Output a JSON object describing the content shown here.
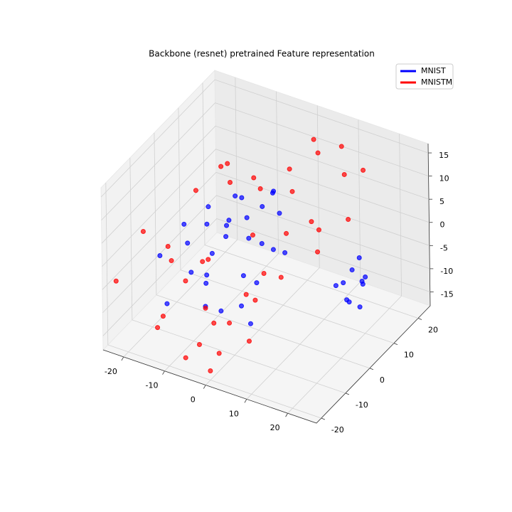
{
  "chart_data": {
    "type": "scatter3d",
    "title": "Backbone (resnet) pretrained Feature representation",
    "legend": "upper right",
    "grid": true,
    "xlim": [
      -25,
      27
    ],
    "ylim": [
      -22,
      25
    ],
    "zlim": [
      -18,
      17
    ],
    "xticks": [
      -20,
      -10,
      0,
      10,
      20
    ],
    "yticks": [
      -20,
      -10,
      0,
      10,
      20
    ],
    "zticks": [
      -15,
      -10,
      -5,
      0,
      5,
      10,
      15
    ],
    "series": [
      {
        "name": "MNIST",
        "color": "#0000ff",
        "x": [
          -18,
          -15,
          -12,
          -10,
          -8,
          -6,
          -5,
          -3,
          -2,
          0,
          1,
          3,
          -14,
          -11,
          -7,
          -4,
          -1,
          2,
          4,
          6,
          -16,
          -9,
          -13,
          -6,
          -2,
          0,
          5,
          -10,
          -8,
          -4,
          22,
          23,
          24,
          25,
          26,
          23,
          24,
          25,
          22,
          26
        ],
        "y": [
          -10,
          -5,
          0,
          5,
          -8,
          -3,
          2,
          7,
          -12,
          -6,
          0,
          4,
          -14,
          -9,
          -1,
          3,
          8,
          -4,
          -10,
          1,
          -2,
          6,
          3,
          -11,
          10,
          -7,
          -2,
          -4,
          9,
          -15,
          -2,
          0,
          -4,
          1,
          -1,
          3,
          -3,
          2,
          -5,
          -2
        ],
        "z": [
          -2,
          3,
          5,
          0,
          -6,
          2,
          8,
          4,
          -8,
          -3,
          1,
          6,
          -9,
          -4,
          3,
          -1,
          7,
          -5,
          -10,
          0,
          -3,
          5,
          -7,
          -2,
          6,
          -9,
          2,
          4,
          -1,
          -6,
          0,
          2,
          -2,
          -1,
          1,
          3,
          -3,
          0,
          1,
          -4
        ]
      },
      {
        "name": "MNISTM",
        "color": "#ff0000",
        "x": [
          -24,
          -22,
          -20,
          -18,
          -15,
          -12,
          -10,
          -8,
          -5,
          -3,
          0,
          2,
          4,
          6,
          8,
          10,
          12,
          14,
          -6,
          -2,
          1,
          3,
          5,
          7,
          -16,
          -13,
          -9,
          -1,
          9,
          11,
          -19,
          -11,
          0,
          6,
          13,
          -7,
          2,
          -4,
          15,
          -14
        ],
        "y": [
          -18,
          -10,
          -2,
          5,
          -14,
          8,
          -6,
          12,
          -16,
          3,
          -12,
          10,
          -8,
          15,
          -4,
          18,
          2,
          20,
          -20,
          -15,
          -18,
          -10,
          -6,
          0,
          12,
          -8,
          4,
          16,
          10,
          6,
          -5,
          -2,
          -20,
          -14,
          14,
          -10,
          20,
          8,
          12,
          -18
        ],
        "z": [
          -5,
          2,
          -8,
          4,
          -12,
          10,
          -3,
          6,
          -14,
          0,
          -10,
          12,
          -6,
          14,
          -2,
          15,
          8,
          10,
          -15,
          -9,
          -13,
          -4,
          -1,
          5,
          6,
          -7,
          9,
          3,
          1,
          -1,
          -3,
          -5,
          -16,
          -11,
          12,
          -10,
          13,
          7,
          4,
          -12
        ]
      }
    ]
  }
}
